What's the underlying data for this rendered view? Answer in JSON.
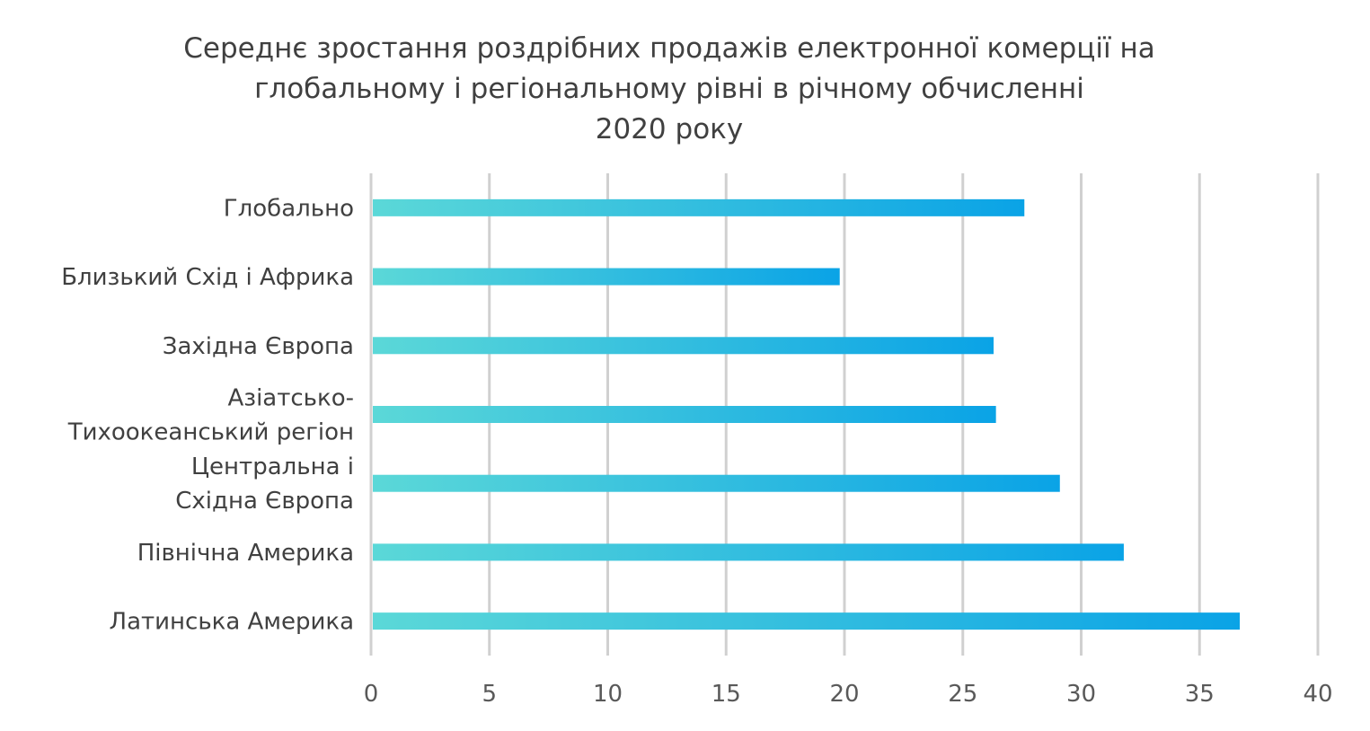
{
  "chart_data": {
    "type": "bar",
    "orientation": "horizontal",
    "title_lines": [
      "Середнє зростання роздрібних продажів електронної комерції на",
      "глобальному і регіональному рівні в річному обчисленні",
      "2020 року"
    ],
    "categories": [
      [
        "Глобально"
      ],
      [
        "Близький Схід і Африка"
      ],
      [
        "Західна Європа"
      ],
      [
        "Азіатсько-",
        "Тихоокеанський регіон"
      ],
      [
        "Центральна і",
        "Східна Європа"
      ],
      [
        "Північна Америка"
      ],
      [
        "Латинська Америка"
      ]
    ],
    "values": [
      27.6,
      19.8,
      26.3,
      26.4,
      29.1,
      31.8,
      36.7
    ],
    "xlim": [
      0,
      40
    ],
    "xticks": [
      "0",
      "5",
      "10",
      "15",
      "20",
      "25",
      "30",
      "35",
      "40"
    ],
    "grid": "vertical",
    "legend": "none",
    "colors": {
      "bar_start": "#5bd8d8",
      "bar_end": "#0aa3e6",
      "grid": "#d0d0d0"
    }
  }
}
